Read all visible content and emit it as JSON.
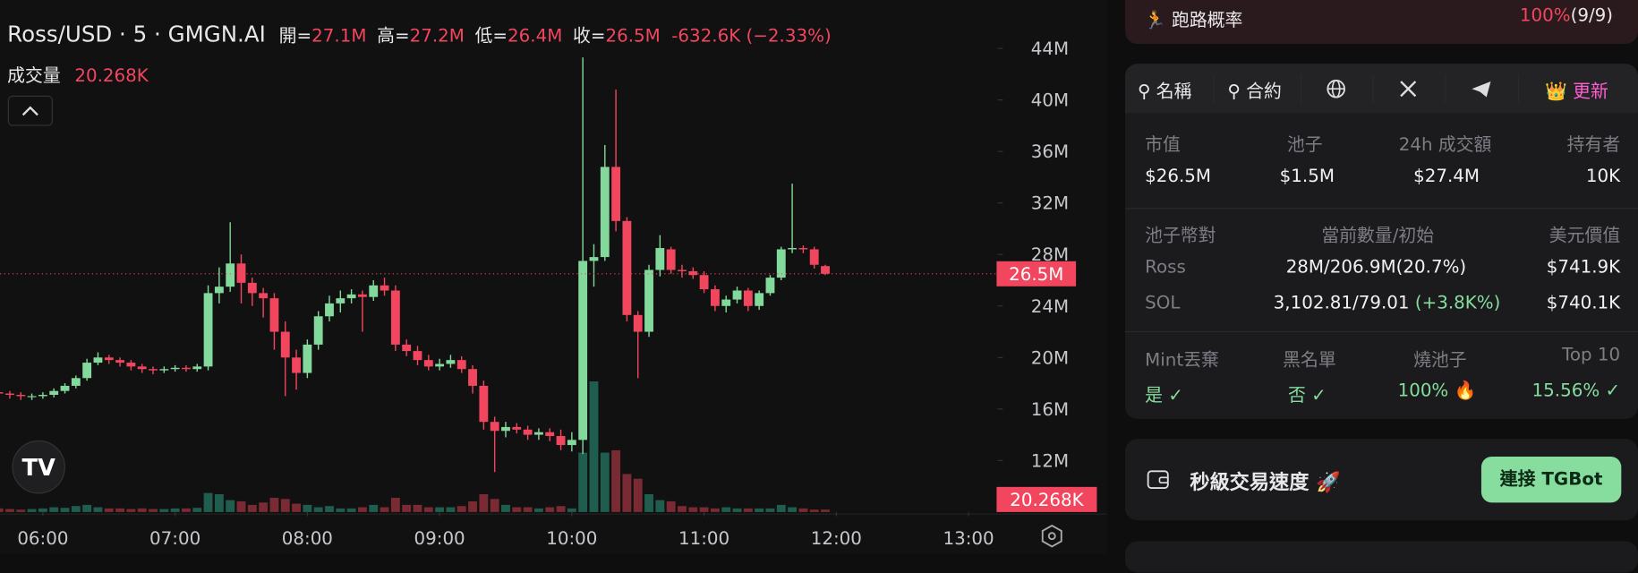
{
  "chart_data": {
    "type": "candlestick",
    "header": {
      "symbol": "Ross/USD · 5 · GMGN.AI",
      "ohlc": [
        {
          "key": "開=",
          "value": "27.1M"
        },
        {
          "key": "高=",
          "value": "27.2M"
        },
        {
          "key": "低=",
          "value": "26.4M"
        },
        {
          "key": "收=",
          "value": "26.5M"
        }
      ],
      "change": "-632.6K (−2.33%)",
      "volume_key": "成交量",
      "volume_value": "20.268K"
    },
    "up_color": "#82d99b",
    "down_color": "#f2465f",
    "volume_up_color": "#1f5e4f",
    "volume_down_color": "#7a2a33",
    "ylim": [
      8,
      47.6
    ],
    "yticks": [
      {
        "value": 12,
        "label": "12M"
      },
      {
        "value": 16,
        "label": "16M"
      },
      {
        "value": 20,
        "label": "20M"
      },
      {
        "value": 24,
        "label": "24M"
      },
      {
        "value": 28,
        "label": "28M"
      },
      {
        "value": 32,
        "label": "32M"
      },
      {
        "value": 36,
        "label": "36M"
      },
      {
        "value": 40,
        "label": "40M"
      },
      {
        "value": 44,
        "label": "44M"
      }
    ],
    "xlim": [
      0.11,
      90.64
    ],
    "xticks": [
      {
        "value": 4,
        "label": "06:00"
      },
      {
        "value": 16,
        "label": "07:00"
      },
      {
        "value": 28,
        "label": "08:00"
      },
      {
        "value": 40,
        "label": "09:00"
      },
      {
        "value": 52,
        "label": "10:00"
      },
      {
        "value": 64,
        "label": "11:00"
      },
      {
        "value": 76,
        "label": "12:00"
      },
      {
        "value": 88,
        "label": "13:00"
      }
    ],
    "open": [
      17.3,
      17.2,
      17.1,
      17.0,
      17.0,
      17.1,
      17.4,
      17.8,
      18.4,
      19.6,
      20.0,
      19.8,
      19.6,
      19.3,
      19.1,
      19.0,
      19.1,
      19.2,
      19.1,
      19.3,
      25.0,
      25.5,
      27.3,
      25.8,
      25.0,
      24.6,
      22.0,
      20.0,
      18.8,
      21.0,
      23.2,
      24.2,
      24.6,
      24.9,
      24.7,
      25.6,
      25.2,
      21.0,
      20.5,
      19.8,
      19.3,
      19.5,
      19.8,
      19.1,
      17.8,
      15.0,
      14.3,
      14.6,
      14.4,
      14.0,
      14.2,
      13.9,
      13.2,
      13.6,
      27.5,
      27.8,
      34.8,
      30.6,
      23.3,
      22.0,
      26.8,
      28.4,
      26.8,
      26.7,
      26.4,
      25.3,
      24.0,
      24.5,
      25.2,
      24.0,
      25.0,
      26.2,
      28.4,
      28.5,
      28.4,
      27.1
    ],
    "high": [
      17.5,
      17.4,
      17.3,
      17.2,
      17.3,
      17.6,
      18.0,
      18.6,
      19.9,
      20.4,
      20.2,
      20.0,
      19.8,
      19.5,
      19.3,
      19.3,
      19.4,
      19.4,
      19.5,
      25.6,
      27.0,
      30.5,
      28.0,
      26.2,
      25.4,
      25.0,
      22.8,
      20.6,
      21.4,
      23.6,
      24.8,
      25.2,
      25.3,
      25.2,
      26.0,
      26.2,
      25.6,
      21.4,
      20.9,
      20.2,
      19.9,
      20.2,
      20.1,
      19.4,
      18.2,
      15.4,
      15.0,
      14.9,
      14.7,
      14.5,
      14.5,
      14.4,
      14.2,
      43.3,
      28.8,
      36.5,
      40.8,
      30.9,
      23.6,
      27.2,
      29.5,
      28.6,
      27.2,
      27.0,
      26.7,
      25.6,
      24.8,
      25.5,
      25.4,
      25.2,
      26.4,
      28.6,
      33.5,
      28.7,
      28.6,
      27.2
    ],
    "low": [
      16.9,
      16.8,
      16.7,
      16.7,
      16.8,
      16.9,
      17.2,
      17.6,
      18.2,
      19.4,
      19.5,
      19.3,
      19.0,
      18.8,
      18.7,
      18.8,
      18.9,
      18.9,
      18.9,
      19.0,
      24.2,
      25.1,
      24.2,
      24.0,
      23.1,
      20.6,
      17.0,
      17.5,
      18.4,
      20.6,
      22.8,
      23.5,
      24.2,
      22.0,
      24.4,
      24.8,
      20.5,
      20.1,
      19.4,
      19.0,
      19.0,
      19.2,
      18.8,
      17.2,
      14.4,
      11.1,
      13.8,
      14.1,
      13.6,
      13.6,
      13.5,
      12.8,
      12.7,
      12.5,
      25.5,
      27.5,
      29.8,
      22.8,
      18.4,
      21.6,
      26.3,
      26.5,
      26.2,
      26.1,
      25.0,
      23.6,
      23.5,
      24.2,
      23.6,
      23.7,
      24.8,
      26.0,
      28.1,
      28.1,
      26.9,
      26.4
    ],
    "close": [
      17.2,
      17.1,
      17.0,
      17.0,
      17.1,
      17.4,
      17.8,
      18.4,
      19.6,
      20.0,
      19.8,
      19.6,
      19.3,
      19.1,
      19.0,
      19.1,
      19.2,
      19.1,
      19.3,
      25.0,
      25.5,
      27.3,
      25.8,
      25.0,
      24.6,
      22.0,
      20.0,
      18.8,
      21.0,
      23.2,
      24.2,
      24.6,
      24.9,
      24.7,
      25.6,
      25.2,
      21.0,
      20.5,
      19.8,
      19.3,
      19.5,
      19.8,
      19.1,
      17.8,
      15.0,
      14.3,
      14.6,
      14.4,
      14.0,
      14.2,
      13.9,
      13.2,
      13.6,
      27.5,
      27.8,
      34.8,
      30.6,
      23.3,
      22.0,
      26.8,
      28.5,
      26.8,
      26.7,
      26.4,
      25.3,
      24.0,
      24.5,
      25.2,
      24.0,
      25.0,
      26.2,
      28.4,
      28.5,
      28.4,
      27.2,
      26.5
    ],
    "volume": [
      30,
      25,
      20,
      25,
      30,
      40,
      35,
      50,
      60,
      40,
      30,
      30,
      25,
      30,
      25,
      25,
      30,
      30,
      35,
      160,
      150,
      100,
      90,
      60,
      80,
      120,
      110,
      70,
      60,
      40,
      50,
      30,
      30,
      40,
      60,
      40,
      120,
      60,
      60,
      40,
      40,
      40,
      50,
      90,
      150,
      110,
      60,
      40,
      40,
      30,
      40,
      50,
      30,
      500,
      1100,
      500,
      520,
      320,
      280,
      150,
      100,
      90,
      50,
      40,
      40,
      30,
      40,
      30,
      30,
      30,
      30,
      60,
      40,
      30,
      20,
      20.268
    ],
    "price_label": "26.5M",
    "volume_label": "20.268K"
  },
  "panel": {
    "rug": {
      "label": "跑路概率",
      "value": "100%",
      "count": "(9/9)"
    },
    "tabs": [
      "名稱",
      "合約",
      "更新"
    ],
    "stats": {
      "headers": [
        "市值",
        "池子",
        "24h 成交額",
        "持有者"
      ],
      "values": [
        "$26.5M",
        "$1.5M",
        "$27.4M",
        "10K"
      ]
    },
    "pool": {
      "headers": [
        "池子幣對",
        "當前數量/初始",
        "美元價值"
      ],
      "rows": [
        [
          "Ross",
          "28M/206.9M(20.7%)",
          "",
          "$741.9K"
        ],
        [
          "SOL",
          "3,102.81/79.01",
          "(+3.8K%)",
          "$740.1K"
        ]
      ]
    },
    "checks": {
      "headers": [
        "Mint丟棄",
        "黑名單",
        "燒池子",
        "Top 10"
      ],
      "values": [
        "是",
        "否",
        "100% 🔥",
        "15.56%"
      ]
    },
    "trade": {
      "label": "秒級交易速度 🚀",
      "button": "連接 TGBot"
    }
  }
}
